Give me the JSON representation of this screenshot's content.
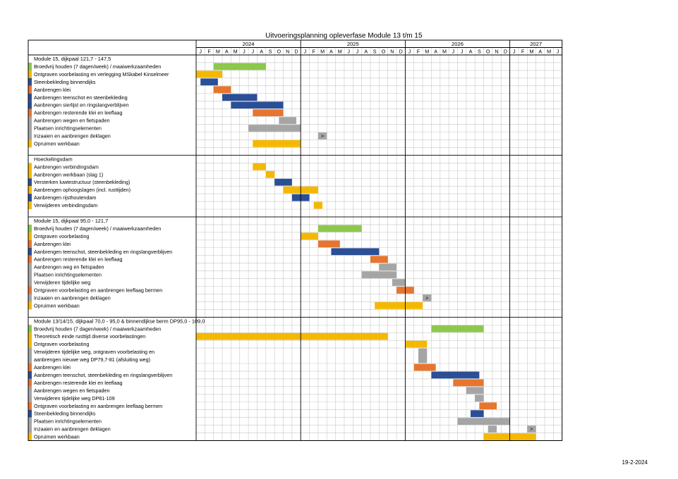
{
  "title": "Uitvoeringsplanning opleverfase Module 13 t/m 15",
  "date": "19-2-2024",
  "colors": {
    "green": "#8cc84b",
    "yellow": "#f5b800",
    "blue": "#2a4f96",
    "orange": "#e8752e",
    "gray": "#a5a5a5",
    "grid": "#c8c8c8",
    "border": "#000000"
  },
  "chart_data": {
    "type": "table",
    "years": [
      {
        "label": "2024",
        "months": 12
      },
      {
        "label": "2025",
        "months": 12
      },
      {
        "label": "2026",
        "months": 12
      },
      {
        "label": "2027",
        "months": 6
      }
    ],
    "month_letters": [
      "J",
      "F",
      "M",
      "A",
      "M",
      "J",
      "J",
      "A",
      "S",
      "O",
      "N",
      "D"
    ],
    "sections": [
      {
        "title": "Module 15, dijkpaal 121,7 - 147,5",
        "tasks": [
          {
            "label": "Broedvrij houden (7 dagen/week) / maaiwerkzaamheden",
            "color": "green",
            "start": 2,
            "end": 8
          },
          {
            "label": "Ontgraven voorbelasting en verlegging MSkabel Kinselmeer",
            "color": "yellow",
            "start": 0,
            "end": 3
          },
          {
            "label": "Steenbekleding binnendijks",
            "color": "blue",
            "start": 0.5,
            "end": 2.5
          },
          {
            "label": "Aanbrengen klei",
            "color": "orange",
            "start": 2,
            "end": 4
          },
          {
            "label": "Aanbrengen teenschot en steenbekleding",
            "color": "blue",
            "start": 3,
            "end": 7
          },
          {
            "label": "Aanbrengen sierlijst en ringslangverblijven",
            "color": "blue",
            "start": 4,
            "end": 10
          },
          {
            "label": "Aanbrengen resterende klei en leeflaag",
            "color": "orange",
            "start": 6.5,
            "end": 10
          },
          {
            "label": "Aanbrengen wegen en fietspaden",
            "color": "gray",
            "start": 9.5,
            "end": 11.5
          },
          {
            "label": "Plaatsen inrichtingselementen",
            "color": "gray",
            "start": 6,
            "end": 12
          },
          {
            "label": "Inzaaien en aanbrengen deklagen",
            "color": "gray",
            "start": 14,
            "end": 15,
            "marker": ">"
          },
          {
            "label": "Opruimen werkbaan",
            "color": "yellow",
            "start": 6.5,
            "end": 12
          }
        ]
      },
      {
        "title": "Hoeckelingsdam",
        "tasks": [
          {
            "label": "Aanbrengen verbindingsdam",
            "color": "yellow",
            "start": 6.5,
            "end": 8
          },
          {
            "label": "Aanbrengen werkbaan (slag 1)",
            "color": "yellow",
            "start": 8,
            "end": 9
          },
          {
            "label": "Versterken luwtestructuur (steenbekleding)",
            "color": "blue",
            "start": 9,
            "end": 11
          },
          {
            "label": "Aanbrengen ophoogslagen (incl. rusttijden)",
            "color": "yellow",
            "start": 10,
            "end": 14
          },
          {
            "label": "Aanbrengen rijsthoutendam",
            "color": "blue",
            "start": 11,
            "end": 13
          },
          {
            "label": "Verwijderen verbindingsdam",
            "color": "yellow",
            "start": 13.5,
            "end": 14.5
          }
        ]
      },
      {
        "title": "Module 15, dijkpaal 95,0 - 121,7",
        "tasks": [
          {
            "label": "Broedvrij houden (7 dagen/week) / maaiwerkzaamheden",
            "color": "green",
            "start": 14,
            "end": 19
          },
          {
            "label": "Ontgraven voorbelasting",
            "color": "yellow",
            "start": 12,
            "end": 14
          },
          {
            "label": "Aanbrengen klei",
            "color": "orange",
            "start": 14,
            "end": 16.5
          },
          {
            "label": "Aanbrengen teenschot, steenbekleding en ringslangverblijven",
            "color": "blue",
            "start": 15.5,
            "end": 21
          },
          {
            "label": "Aanbrengen resterende klei en leeflaag",
            "color": "orange",
            "start": 20,
            "end": 22
          },
          {
            "label": "Aanbrengen weg en fietspaden",
            "color": "gray",
            "start": 21,
            "end": 23
          },
          {
            "label": "Plaatsen inrichtingselementen",
            "color": "gray",
            "start": 19,
            "end": 23
          },
          {
            "label": "Verwijderen tijdelijke weg",
            "color": "gray",
            "start": 22.5,
            "end": 24
          },
          {
            "label": "Ontgraven voorbelasting en aanbrengen leeflaag bermen",
            "color": "orange",
            "start": 23,
            "end": 25
          },
          {
            "label": "Inzaaien en aanbrengen deklagen",
            "color": "gray",
            "start": 26,
            "end": 27,
            "marker": ">"
          },
          {
            "label": "Opruimen werkbaan",
            "color": "yellow",
            "start": 20.5,
            "end": 26
          }
        ]
      },
      {
        "title": "Module 13/14/15, dijkpaal 70,0 - 95,0 & binnendijkse berm DP95,0 - 109,0",
        "tasks": [
          {
            "label": "Broedvrij houden (7 dagen/week) / maaiwerkzaamheden",
            "color": "green",
            "start": 27,
            "end": 33
          },
          {
            "label": "Theoretisch einde rusttijd diverse voorbelastingen",
            "color": "yellow",
            "start": 0,
            "end": 22
          },
          {
            "label": "Ontgraven voorbelasting",
            "color": "yellow",
            "start": 24,
            "end": 26.5
          },
          {
            "label": "Verwijderen tijdelijke weg, ontgraven voorbelasting en",
            "label2": "aanbrengen nieuwe weg  DP79,7-81 (afsluiting weg)",
            "color": "gray",
            "start": 25.5,
            "end": 26.5,
            "rows": 2
          },
          {
            "label": "Aanbrengen klei",
            "color": "orange",
            "start": 25,
            "end": 27.5
          },
          {
            "label": "Aanbrengen teenschot, steenbekleding en ringslangverblijven",
            "color": "blue",
            "start": 27,
            "end": 32.5
          },
          {
            "label": "Aanbrengen resterende klei en leeflaag",
            "color": "orange",
            "start": 29.5,
            "end": 33
          },
          {
            "label": "Aanbrengen wegen en fietspaden",
            "color": "gray",
            "start": 31,
            "end": 33
          },
          {
            "label": "Verwijderen tijdelijke weg DP81-109",
            "color": "gray",
            "start": 32,
            "end": 33
          },
          {
            "label": "Ontgraven voorbelasting en aanbrengen leeflaag bermen",
            "color": "orange",
            "start": 32.5,
            "end": 34.5
          },
          {
            "label": "Steenbekleding binnendijks",
            "color": "blue",
            "start": 31.5,
            "end": 33
          },
          {
            "label": "Plaatsen inrichtingselementen",
            "color": "gray",
            "start": 30,
            "end": 36
          },
          {
            "label": "Inzaaien en aanbrengen deklagen",
            "color": "gray",
            "start": 33.5,
            "end": 34.5,
            "marker": ">",
            "marker_at": 38
          },
          {
            "label": "Opruimen werkbaan",
            "color": "yellow",
            "start": 33,
            "end": 39
          }
        ]
      }
    ]
  }
}
